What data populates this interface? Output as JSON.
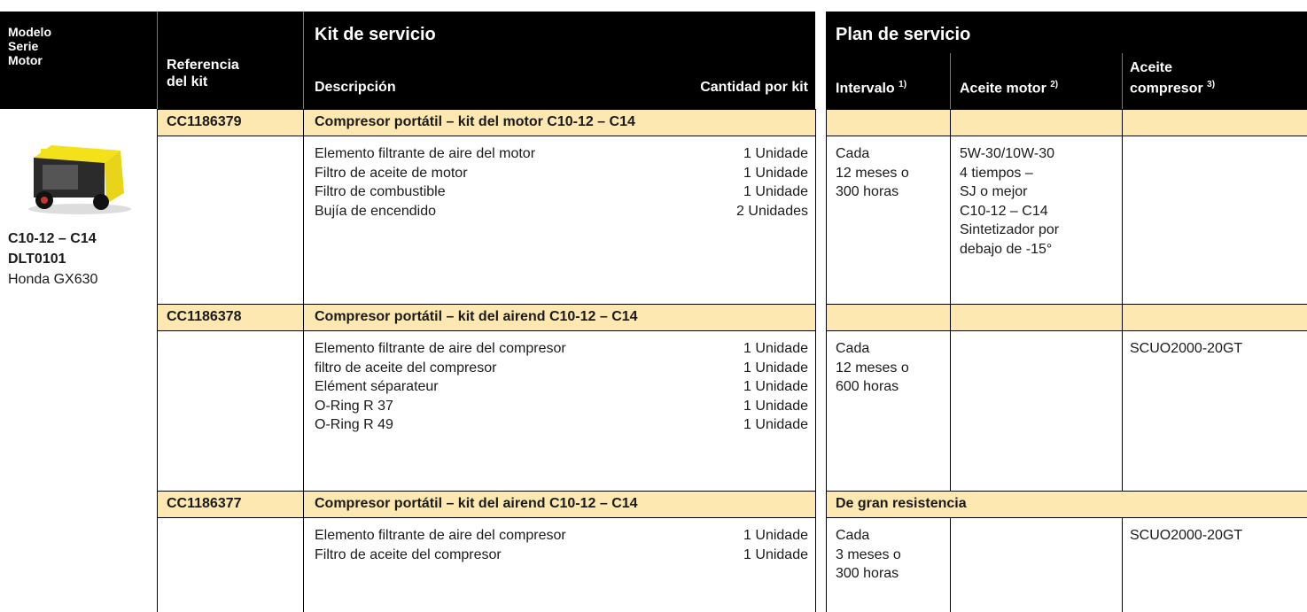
{
  "header": {
    "model_col": [
      "Modelo",
      "Serie",
      "Motor"
    ],
    "kit_ref": [
      "Referencia",
      "del kit"
    ],
    "kit_title": "Kit de servicio",
    "description": "Descripción",
    "quantity": "Cantidad por kit",
    "plan_title": "Plan de servicio",
    "interval": {
      "label": "Intervalo",
      "note": "1)"
    },
    "engine_oil": {
      "label": "Aceite motor",
      "note": "2)"
    },
    "compressor_oil": {
      "label": [
        "Aceite",
        "compresor"
      ],
      "note": "3)"
    }
  },
  "model": {
    "name": "C10-12 – C14",
    "serie": "DLT0101",
    "motor": "Honda GX630"
  },
  "kits": [
    {
      "ref": "CC1186379",
      "title": "Compresor portátil – kit del motor C10-12 – C14",
      "items": [
        {
          "description": "Elemento filtrante de aire del motor",
          "quantity": "1 Unidade"
        },
        {
          "description": "Filtro de aceite de motor",
          "quantity": "1 Unidade"
        },
        {
          "description": "Filtro de combustible",
          "quantity": "1 Unidade"
        },
        {
          "description": "Bujía de encendido",
          "quantity": "2 Unidades"
        }
      ],
      "interval": [
        "Cada",
        "12 meses o",
        "300 horas"
      ],
      "engine_oil": [
        "5W-30/10W-30",
        "4 tiempos –",
        "SJ o mejor",
        "C10-12 – C14",
        "Sintetizador por",
        "debajo de -15°"
      ],
      "compressor_oil": []
    },
    {
      "ref": "CC1186378",
      "title": "Compresor portátil – kit del airend C10-12 – C14",
      "items": [
        {
          "description": "Elemento filtrante de aire del compresor",
          "quantity": "1 Unidade"
        },
        {
          "description": "filtro de aceite del compresor",
          "quantity": "1 Unidade"
        },
        {
          "description": "Elément séparateur",
          "quantity": "1 Unidade"
        },
        {
          "description": "O-Ring R 37",
          "quantity": "1 Unidade"
        },
        {
          "description": "O-Ring R 49",
          "quantity": "1 Unidade"
        }
      ],
      "interval": [
        "Cada",
        "12 meses o",
        "600 horas"
      ],
      "engine_oil": [],
      "compressor_oil": [
        "SCUO2000-20GT"
      ]
    },
    {
      "ref": "CC1186377",
      "title": "Compresor portátil – kit del airend C10-12 – C14",
      "plan_label": "De gran resistencia",
      "items": [
        {
          "description": "Elemento filtrante de aire del compresor",
          "quantity": "1 Unidade"
        },
        {
          "description": "Filtro de aceite del compresor",
          "quantity": "1 Unidade"
        }
      ],
      "interval": [
        "Cada",
        "3 meses o",
        "300 horas"
      ],
      "engine_oil": [],
      "compressor_oil": [
        "SCUO2000-20GT"
      ]
    }
  ]
}
